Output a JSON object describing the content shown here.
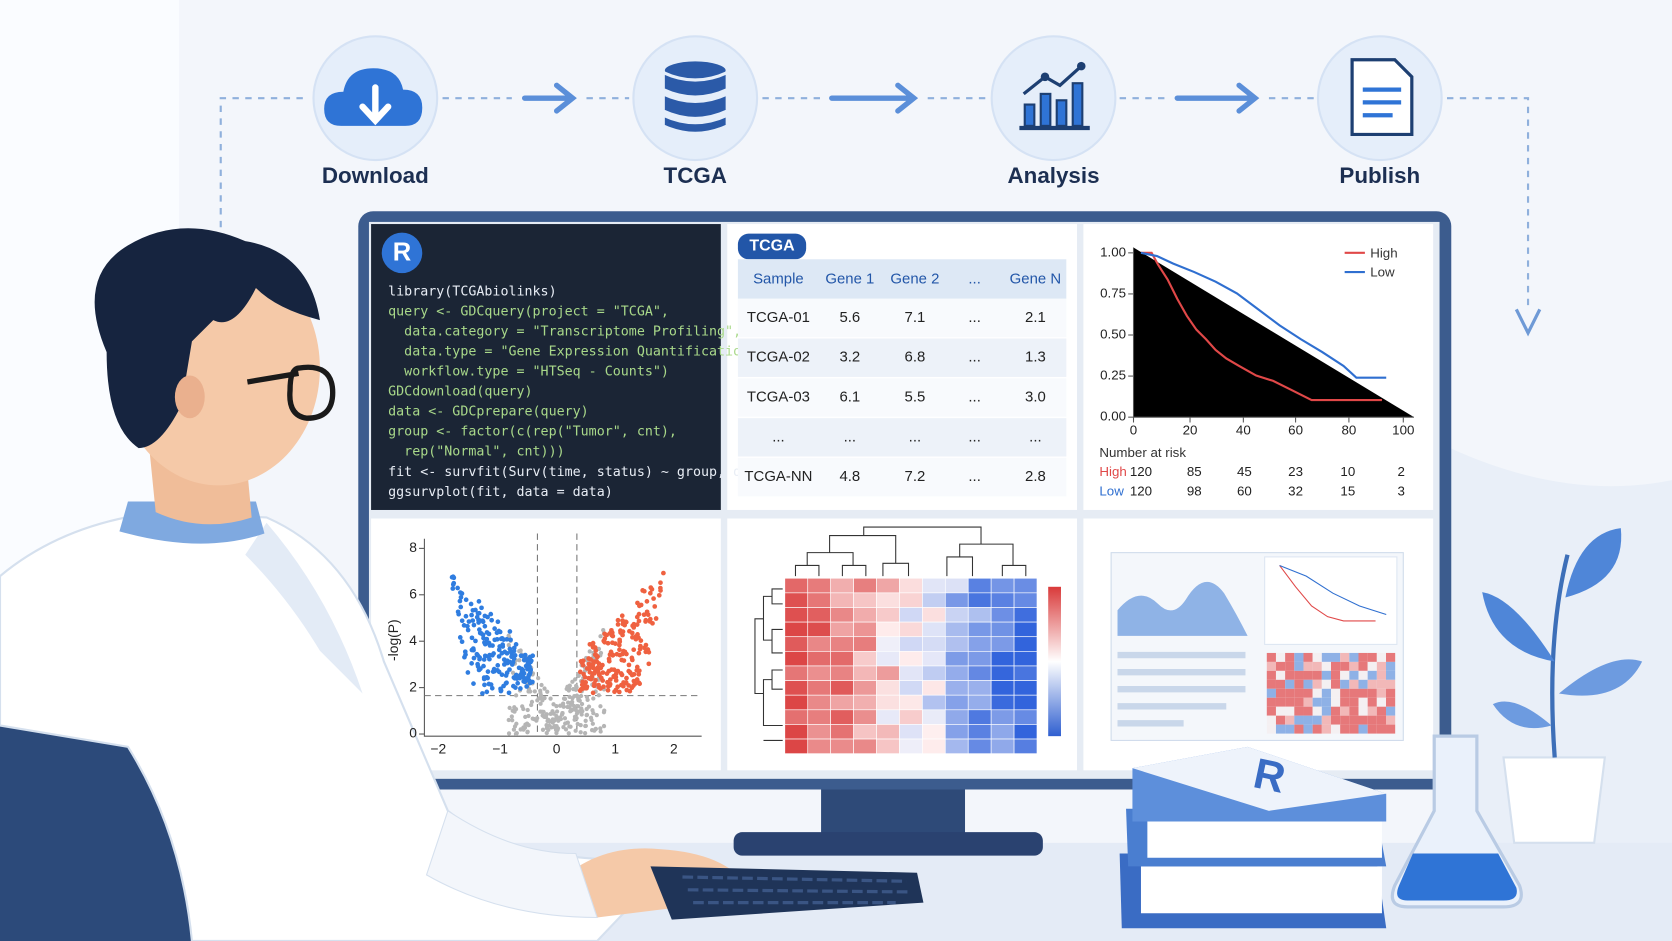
{
  "workflow": [
    "Download",
    "TCGA",
    "Analysis",
    "Publish"
  ],
  "code": {
    "badge": "R",
    "lines": [
      "library(TCGAbiolinks)",
      "query <- GDCquery(project = \"TCGA\",",
      "  data.category = \"Transcriptome Profiling\",",
      "  data.type = \"Gene Expression Quantification\",",
      "  workflow.type = \"HTSeq - Counts\")",
      "GDCdownload(query)",
      "data <- GDCprepare(query)",
      "group <- factor(c(rep(\"Tumor\", cnt),",
      "  rep(\"Normal\", cnt)))",
      "fit <- survfit(Surv(time, status) ~ group, data)",
      "ggsurvplot(fit, data = data)"
    ]
  },
  "table": {
    "badge": "TCGA",
    "header": [
      "Sample",
      "Gene 1",
      "Gene 2",
      "...",
      "Gene N"
    ],
    "rows": [
      [
        "TCGA-01",
        "5.6",
        "7.1",
        "...",
        "2.1"
      ],
      [
        "TCGA-02",
        "3.2",
        "6.8",
        "...",
        "1.3"
      ],
      [
        "TCGA-03",
        "6.1",
        "5.5",
        "...",
        "3.0"
      ],
      [
        "...",
        "...",
        "...",
        "...",
        "..."
      ],
      [
        "TCGA-NN",
        "4.8",
        "7.2",
        "...",
        "2.8"
      ]
    ]
  },
  "survival": {
    "legend": [
      "High",
      "Low"
    ],
    "yticks": [
      "0.00",
      "0.25",
      "0.50",
      "0.75",
      "1.00"
    ],
    "xticks": [
      "0",
      "20",
      "40",
      "60",
      "80",
      "100"
    ],
    "risk_title": "Number at risk",
    "risk_rows": [
      {
        "label": "High",
        "values": [
          "120",
          "85",
          "45",
          "23",
          "10",
          "2"
        ]
      },
      {
        "label": "Low",
        "values": [
          "120",
          "98",
          "60",
          "32",
          "15",
          "3"
        ]
      }
    ]
  },
  "volcano": {
    "ylabel": "-log(P)",
    "yticks": [
      "0",
      "2",
      "4",
      "6",
      "8"
    ],
    "xticks": [
      "−2",
      "−1",
      "0",
      "1",
      "2"
    ]
  },
  "book_label": "R"
}
